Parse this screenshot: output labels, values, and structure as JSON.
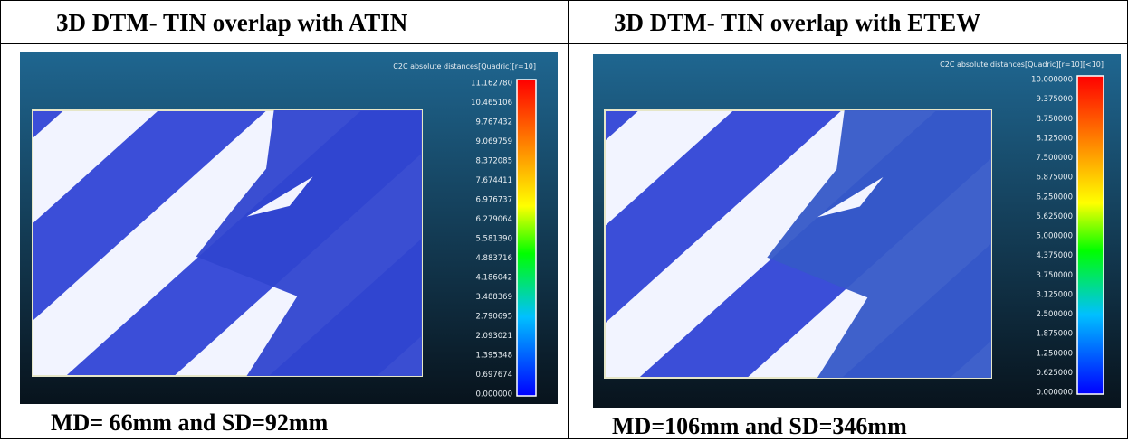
{
  "table": {
    "headers": [
      "3D DTM- TIN overlap with ATIN",
      "3D DTM- TIN overlap with ETEW"
    ],
    "panels": [
      {
        "scale_title": "C2C absolute distances[Quadric][r=10]",
        "scale_labels": [
          "11.162780",
          "10.465106",
          "9.767432",
          "9.069759",
          "8.372085",
          "7.674411",
          "6.976737",
          "6.279064",
          "5.581390",
          "4.883716",
          "4.186042",
          "3.488369",
          "2.790695",
          "2.093021",
          "1.395348",
          "0.697674",
          "0.000000"
        ],
        "caption": "MD= 66mm and SD=92mm"
      },
      {
        "scale_title": "C2C absolute distances[Quadric][r=10][<10]",
        "scale_labels": [
          "10.000000",
          "9.375000",
          "8.750000",
          "8.125000",
          "7.500000",
          "6.875000",
          "6.250000",
          "5.625000",
          "5.000000",
          "4.375000",
          "3.750000",
          "3.125000",
          "2.500000",
          "1.875000",
          "1.250000",
          "0.625000",
          "0.000000"
        ],
        "caption": "MD=106mm and SD=346mm"
      }
    ]
  }
}
